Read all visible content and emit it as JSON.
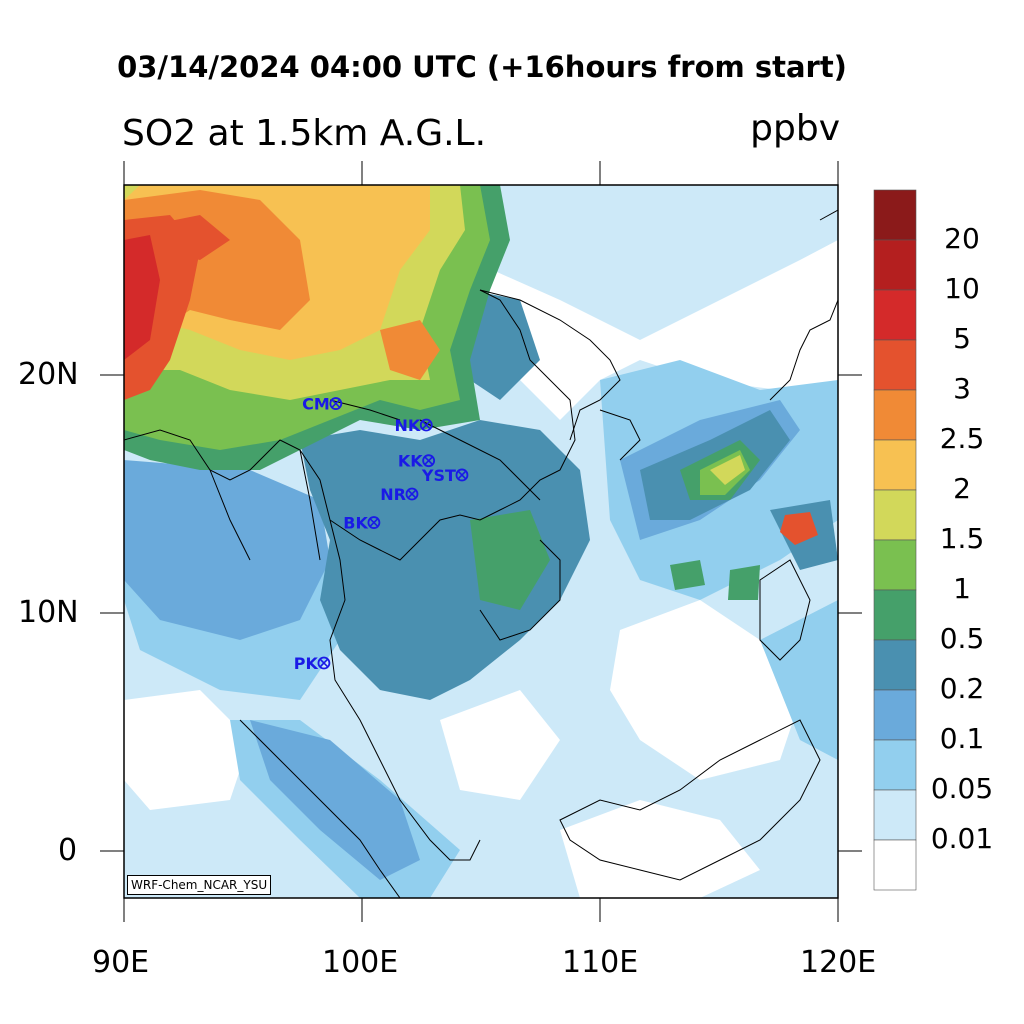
{
  "title": "03/14/2024 04:00 UTC (+16hours from start)",
  "variable_label": "SO2 at 1.5km A.G.L.",
  "units_label": "ppbv",
  "credit": "WRF-Chem_NCAR_YSU",
  "lon_ticks": [
    "90E",
    "100E",
    "110E",
    "120E"
  ],
  "lat_ticks": [
    "20N",
    "10N",
    "0"
  ],
  "colorbar": {
    "labels": [
      "20",
      "10",
      "5",
      "3",
      "2.5",
      "2",
      "1.5",
      "1",
      "0.5",
      "0.2",
      "0.1",
      "0.05",
      "0.01"
    ],
    "colors": [
      "#8b1a1a",
      "#b41f1f",
      "#d42a2a",
      "#e4522e",
      "#f08a36",
      "#f7c152",
      "#d2d85a",
      "#7ac050",
      "#45a06a",
      "#4a90b0",
      "#6aaadb",
      "#92cfee",
      "#cde9f8",
      "#ffffff"
    ]
  },
  "stations": [
    {
      "code": "CM",
      "lon": 98.9,
      "lat": 18.8
    },
    {
      "code": "NK",
      "lon": 102.7,
      "lat": 17.9
    },
    {
      "code": "KK",
      "lon": 102.8,
      "lat": 16.4
    },
    {
      "code": "YST",
      "lon": 104.2,
      "lat": 15.8
    },
    {
      "code": "NR",
      "lon": 102.1,
      "lat": 15.0
    },
    {
      "code": "BK",
      "lon": 100.5,
      "lat": 13.8
    },
    {
      "code": "PK",
      "lon": 98.4,
      "lat": 7.9
    }
  ]
}
